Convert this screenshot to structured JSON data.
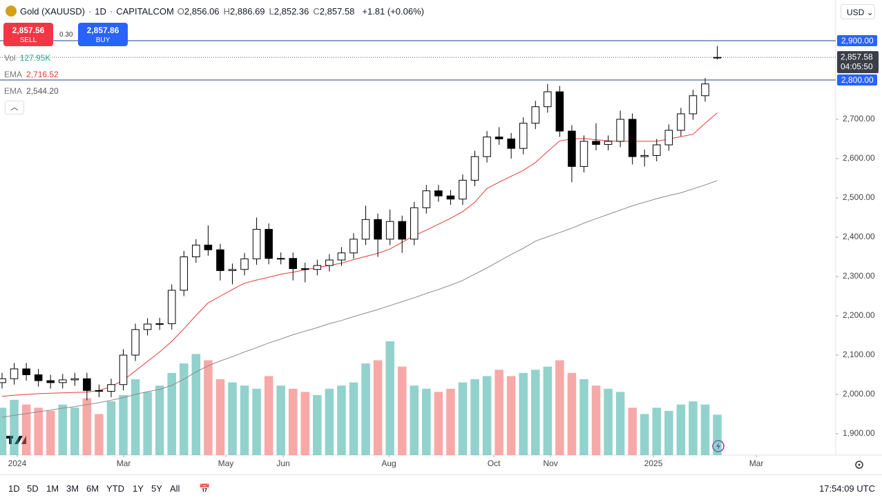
{
  "header": {
    "symbol": "Gold (XAUUSD)",
    "sep1": "·",
    "interval": "1D",
    "sep2": "·",
    "source": "CAPITALCOM",
    "ohlc": [
      {
        "key": "O",
        "label": "2,856.06"
      },
      {
        "key": "H",
        "label": "2,886.69"
      },
      {
        "key": "L",
        "label": "2,852.36"
      },
      {
        "key": "C",
        "label": "2,857.58"
      }
    ],
    "change": "+1.81 (+0.06%)",
    "currency": "USD"
  },
  "trade": {
    "sell_price": "2,857.56",
    "sell": "SELL",
    "spread": "0.30",
    "buy_price": "2,857.86",
    "buy": "BUY"
  },
  "toolbar": {
    "ranges": [
      "1D",
      "5D",
      "1M",
      "3M",
      "6M",
      "YTD",
      "1Y",
      "5Y",
      "All"
    ],
    "time": "17:54:09 UTC"
  },
  "chart_data": {
    "type": "candlestick",
    "categories": [
      null,
      null,
      null,
      null,
      null,
      null,
      null,
      null,
      null,
      null,
      null,
      null,
      null,
      null,
      null,
      null,
      null,
      null,
      null,
      null,
      null,
      null,
      null,
      null,
      null,
      null,
      null,
      null,
      null,
      null,
      null,
      null,
      null,
      null,
      null,
      null,
      null,
      null,
      null,
      null,
      null,
      null,
      null,
      null,
      null,
      null,
      null,
      null,
      null,
      null,
      null,
      null,
      null,
      null,
      null,
      null,
      null,
      null,
      null,
      null
    ],
    "open": [
      2030,
      2040,
      2065,
      2050,
      2035,
      2030,
      2037,
      2040,
      2010,
      2008,
      2025,
      2100,
      2165,
      2179,
      2180,
      2265,
      2350,
      2380,
      2368,
      2315,
      2318,
      2345,
      2420,
      2346,
      2346,
      2320,
      2318,
      2328,
      2342,
      2360,
      2395,
      2445,
      2395,
      2440,
      2395,
      2475,
      2518,
      2505,
      2497,
      2545,
      2605,
      2655,
      2650,
      2626,
      2690,
      2732,
      2770,
      2670,
      2580,
      2644,
      2636,
      2644,
      2700,
      2605,
      2608,
      2635,
      2672,
      2714,
      2760,
      2856.06
    ],
    "high": [
      2055,
      2080,
      2080,
      2065,
      2050,
      2052,
      2055,
      2055,
      2025,
      2040,
      2115,
      2180,
      2194,
      2195,
      2280,
      2365,
      2395,
      2430,
      2383,
      2333,
      2360,
      2450,
      2435,
      2361,
      2361,
      2335,
      2343,
      2357,
      2375,
      2410,
      2480,
      2460,
      2470,
      2455,
      2490,
      2533,
      2533,
      2520,
      2560,
      2620,
      2670,
      2680,
      2665,
      2705,
      2747,
      2790,
      2785,
      2685,
      2659,
      2690,
      2659,
      2722,
      2715,
      2623,
      2650,
      2687,
      2729,
      2775,
      2805,
      2886.69
    ],
    "low": [
      2015,
      2025,
      2035,
      2020,
      2015,
      2015,
      2022,
      1985,
      1993,
      1993,
      2010,
      2085,
      2150,
      2164,
      2165,
      2250,
      2335,
      2353,
      2290,
      2280,
      2303,
      2330,
      2331,
      2331,
      2290,
      2285,
      2303,
      2313,
      2327,
      2345,
      2380,
      2350,
      2380,
      2360,
      2380,
      2460,
      2490,
      2482,
      2482,
      2530,
      2590,
      2635,
      2600,
      2611,
      2675,
      2717,
      2655,
      2540,
      2565,
      2621,
      2621,
      2629,
      2585,
      2580,
      2593,
      2620,
      2657,
      2699,
      2745,
      2852.36
    ],
    "close": [
      2040,
      2065,
      2050,
      2035,
      2030,
      2037,
      2040,
      2010,
      2008,
      2025,
      2100,
      2165,
      2179,
      2180,
      2265,
      2350,
      2380,
      2368,
      2315,
      2318,
      2345,
      2420,
      2346,
      2346,
      2320,
      2318,
      2328,
      2342,
      2360,
      2395,
      2445,
      2395,
      2440,
      2395,
      2475,
      2518,
      2505,
      2497,
      2545,
      2605,
      2655,
      2650,
      2626,
      2690,
      2732,
      2770,
      2670,
      2580,
      2644,
      2636,
      2644,
      2700,
      2605,
      2608,
      2635,
      2672,
      2714,
      2760,
      2790,
      2857.58
    ],
    "colors": {
      "up": "#ffffff",
      "down": "#000000",
      "wick": "#000000"
    },
    "last_price_label": "2,857.58",
    "countdown": "04:05:50",
    "volume": {
      "name": "Vol",
      "last_label": "127.95K",
      "up_color": "#26a69a",
      "down_color": "#ef5350",
      "values": [
        150000,
        175000,
        160000,
        150000,
        140000,
        160000,
        150000,
        180000,
        130000,
        170000,
        190000,
        240000,
        200000,
        220000,
        260000,
        290000,
        320000,
        300000,
        240000,
        230000,
        220000,
        210000,
        250000,
        220000,
        210000,
        200000,
        190000,
        210000,
        220000,
        230000,
        290000,
        300000,
        360000,
        280000,
        220000,
        210000,
        200000,
        210000,
        230000,
        240000,
        250000,
        270000,
        250000,
        260000,
        270000,
        280000,
        300000,
        260000,
        240000,
        220000,
        210000,
        200000,
        150000,
        130000,
        150000,
        140000,
        160000,
        170000,
        160000,
        127950
      ]
    },
    "series": [
      {
        "name": "EMA",
        "color": "#e53935",
        "last_label": "2,716.52",
        "values": [
          1995,
          1998,
          2000,
          2002,
          2003,
          2004,
          2005,
          2006,
          2010,
          2020,
          2036,
          2060,
          2084,
          2108,
          2135,
          2167,
          2201,
          2233,
          2250,
          2267,
          2283,
          2291,
          2298,
          2306,
          2311,
          2317,
          2323,
          2328,
          2334,
          2343,
          2351,
          2359,
          2370,
          2387,
          2404,
          2418,
          2433,
          2448,
          2465,
          2489,
          2524,
          2540,
          2555,
          2570,
          2590,
          2618,
          2645,
          2650,
          2651,
          2648,
          2645,
          2644,
          2644,
          2644,
          2644,
          2650,
          2656,
          2662,
          2690,
          2716.52
        ]
      },
      {
        "name": "EMA",
        "color": "#8a8a8a",
        "last_label": "2,544.20",
        "values": [
          1942,
          1947,
          1951,
          1956,
          1960,
          1965,
          1969,
          1974,
          1979,
          1985,
          1992,
          2000,
          2007,
          2013,
          2023,
          2039,
          2057,
          2073,
          2085,
          2096,
          2108,
          2119,
          2131,
          2141,
          2152,
          2161,
          2170,
          2180,
          2188,
          2198,
          2207,
          2216,
          2226,
          2236,
          2246,
          2257,
          2267,
          2278,
          2290,
          2306,
          2322,
          2339,
          2356,
          2372,
          2390,
          2401,
          2412,
          2423,
          2436,
          2447,
          2458,
          2469,
          2480,
          2489,
          2498,
          2506,
          2513,
          2523,
          2533,
          2544.2
        ]
      }
    ],
    "xlim": [
      -0.17,
      68.77
    ],
    "xticks": [
      {
        "value": 1.25,
        "label": "2024"
      },
      {
        "value": 10.03,
        "label": "Mar"
      },
      {
        "value": 18.46,
        "label": "May"
      },
      {
        "value": 23.19,
        "label": "Jun"
      },
      {
        "value": 31.91,
        "label": "Aug"
      },
      {
        "value": 40.57,
        "label": "Oct"
      },
      {
        "value": 45.24,
        "label": "Nov"
      },
      {
        "value": 53.73,
        "label": "2025"
      },
      {
        "value": 62.22,
        "label": "Mar"
      }
    ],
    "ylim": [
      1845.6,
      3003.5
    ],
    "yticks": [
      {
        "value": 1900,
        "label": "1,900.00"
      },
      {
        "value": 2000,
        "label": "2,000.00"
      },
      {
        "value": 2100,
        "label": "2,100.00"
      },
      {
        "value": 2200,
        "label": "2,200.00"
      },
      {
        "value": 2300,
        "label": "2,300.00"
      },
      {
        "value": 2400,
        "label": "2,400.00"
      },
      {
        "value": 2500,
        "label": "2,500.00"
      },
      {
        "value": 2600,
        "label": "2,600.00"
      },
      {
        "value": 2700,
        "label": "2,700.00"
      }
    ],
    "levels": [
      {
        "value": 2900,
        "label": "2,900.00",
        "color": "#2962ff"
      },
      {
        "value": 2800,
        "label": "2,800.00",
        "color": "#2962ff"
      }
    ]
  }
}
